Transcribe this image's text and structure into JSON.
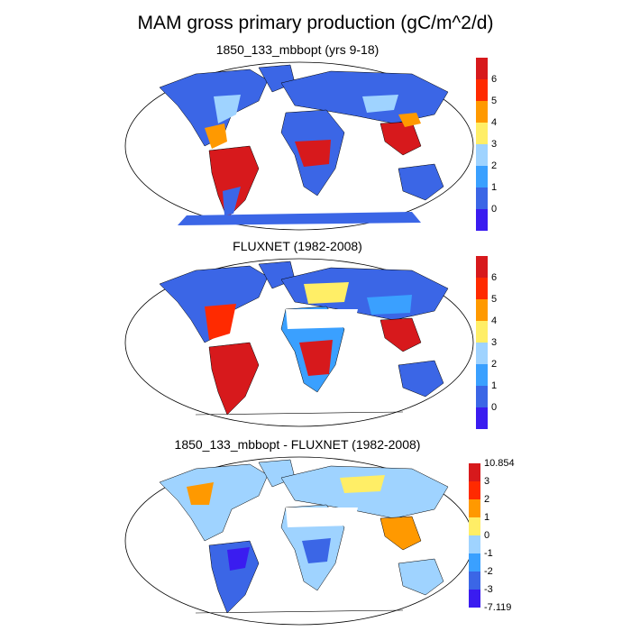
{
  "title": "MAM gross primary production (gC/m^2/d)",
  "panels": [
    {
      "title": "1850_133_mbbopt (yrs 9-18)",
      "colorbar": {
        "labels": [
          "6",
          "5",
          "4",
          "3",
          "2",
          "1",
          "0"
        ],
        "colors": [
          "#d7191c",
          "#ff2a00",
          "#ff9900",
          "#ffee66",
          "#9fd3ff",
          "#3aa0ff",
          "#3b66e6",
          "#3a1cf0"
        ]
      }
    },
    {
      "title": "FLUXNET (1982-2008)",
      "colorbar": {
        "labels": [
          "6",
          "5",
          "4",
          "3",
          "2",
          "1",
          "0"
        ],
        "colors": [
          "#d7191c",
          "#ff2a00",
          "#ff9900",
          "#ffee66",
          "#9fd3ff",
          "#3aa0ff",
          "#3b66e6",
          "#3a1cf0"
        ]
      }
    },
    {
      "title": "1850_133_mbbopt - FLUXNET (1982-2008)",
      "colorbar": {
        "labels": [
          "10.854",
          "3",
          "2",
          "1",
          "0",
          "-1",
          "-2",
          "-3",
          "-7.119"
        ],
        "colors": [
          "#d7191c",
          "#ff2a00",
          "#ff9900",
          "#ffee66",
          "#9fd3ff",
          "#3aa0ff",
          "#3b66e6",
          "#3a1cf0"
        ]
      }
    }
  ]
}
